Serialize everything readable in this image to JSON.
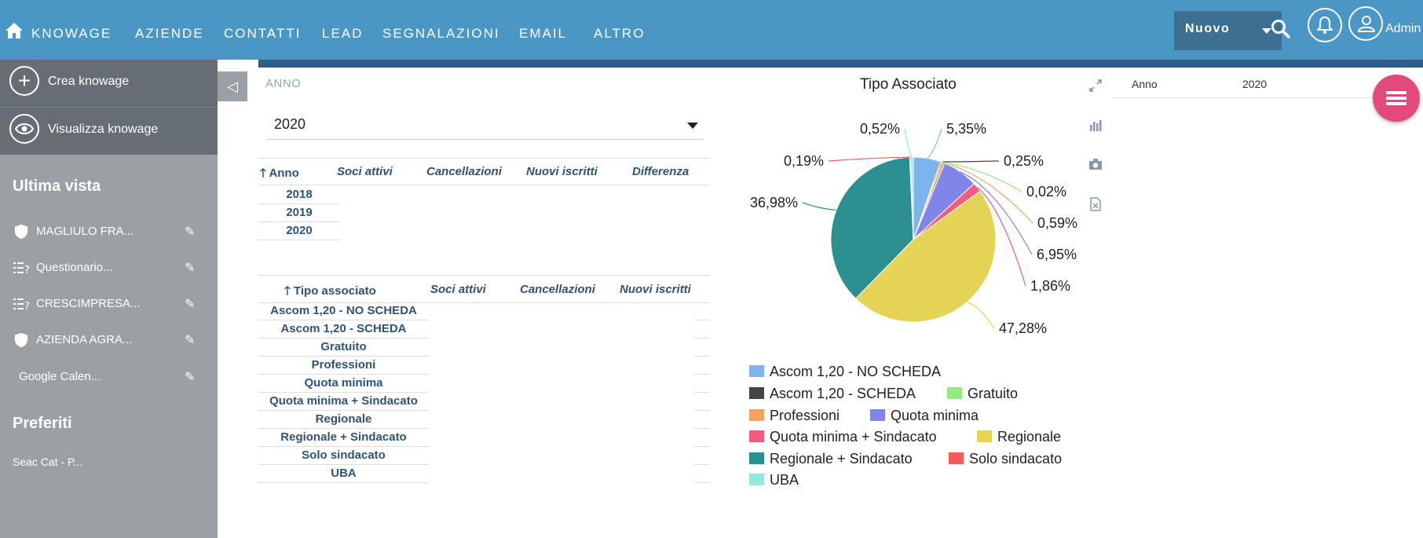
{
  "nav": {
    "items": [
      "KNOWAGE",
      "AZIENDE",
      "CONTATTI",
      "LEAD",
      "SEGNALAZIONI",
      "EMAIL",
      "ALTRO"
    ],
    "nuovo": "Nuovo",
    "user": "Admin"
  },
  "sidebar": {
    "create": "Crea knowage",
    "view": "Visualizza knowage",
    "recent_title": "Ultima vista",
    "recent": [
      {
        "label": "MAGLIULO FRA...",
        "icon": "shield-icon"
      },
      {
        "label": "Questionario...",
        "icon": "checklist-icon"
      },
      {
        "label": "CRESCIMPRESA...",
        "icon": "checklist-icon"
      },
      {
        "label": "AZIENDA AGRA...",
        "icon": "shield-icon"
      },
      {
        "label": "Google Calen...",
        "icon": ""
      }
    ],
    "favorites_title": "Preferiti",
    "favorites": [
      "Seac Cat - P..."
    ]
  },
  "filter": {
    "label": "ANNO",
    "value": "2020"
  },
  "table1": {
    "headers": [
      "Anno",
      "Soci attivi",
      "Cancellazioni",
      "Nuovi iscritti",
      "Differenza"
    ],
    "rows": [
      "2018",
      "2019",
      "2020"
    ]
  },
  "table2": {
    "headers": [
      "Tipo associato",
      "Soci attivi",
      "Cancellazioni",
      "Nuovi iscritti"
    ],
    "rows": [
      "Ascom 1,20 - NO SCHEDA",
      "Ascom 1,20 - SCHEDA",
      "Gratuito",
      "Professioni",
      "Quota minima",
      "Quota minima + Sindacato",
      "Regionale",
      "Regionale + Sindacato",
      "Solo sindacato",
      "UBA"
    ]
  },
  "chart_title": "Tipo Associato",
  "chart_data": {
    "type": "pie",
    "title": "Tipo Associato",
    "categories": [
      "Ascom 1,20 - NO SCHEDA",
      "Ascom 1,20 - SCHEDA",
      "Gratuito",
      "Professioni",
      "Quota minima",
      "Quota minima + Sindacato",
      "Regionale",
      "Regionale + Sindacato",
      "Solo sindacato",
      "UBA"
    ],
    "values": [
      5.35,
      0.25,
      0.02,
      0.59,
      6.95,
      1.86,
      47.28,
      36.98,
      0.19,
      0.52
    ],
    "labels": [
      "5,35%",
      "0,25%",
      "0,02%",
      "0,59%",
      "6,95%",
      "1,86%",
      "47,28%",
      "36,98%",
      "0,19%",
      "0,52%"
    ],
    "colors": [
      "#7cb5ec",
      "#434348",
      "#90ed7d",
      "#f7a35c",
      "#8085e9",
      "#f15c80",
      "#e4d354",
      "#2b908f",
      "#f45b5b",
      "#91e8e1"
    ],
    "legend": "bottom"
  },
  "right_panel": {
    "label": "Anno",
    "value": "2020"
  }
}
